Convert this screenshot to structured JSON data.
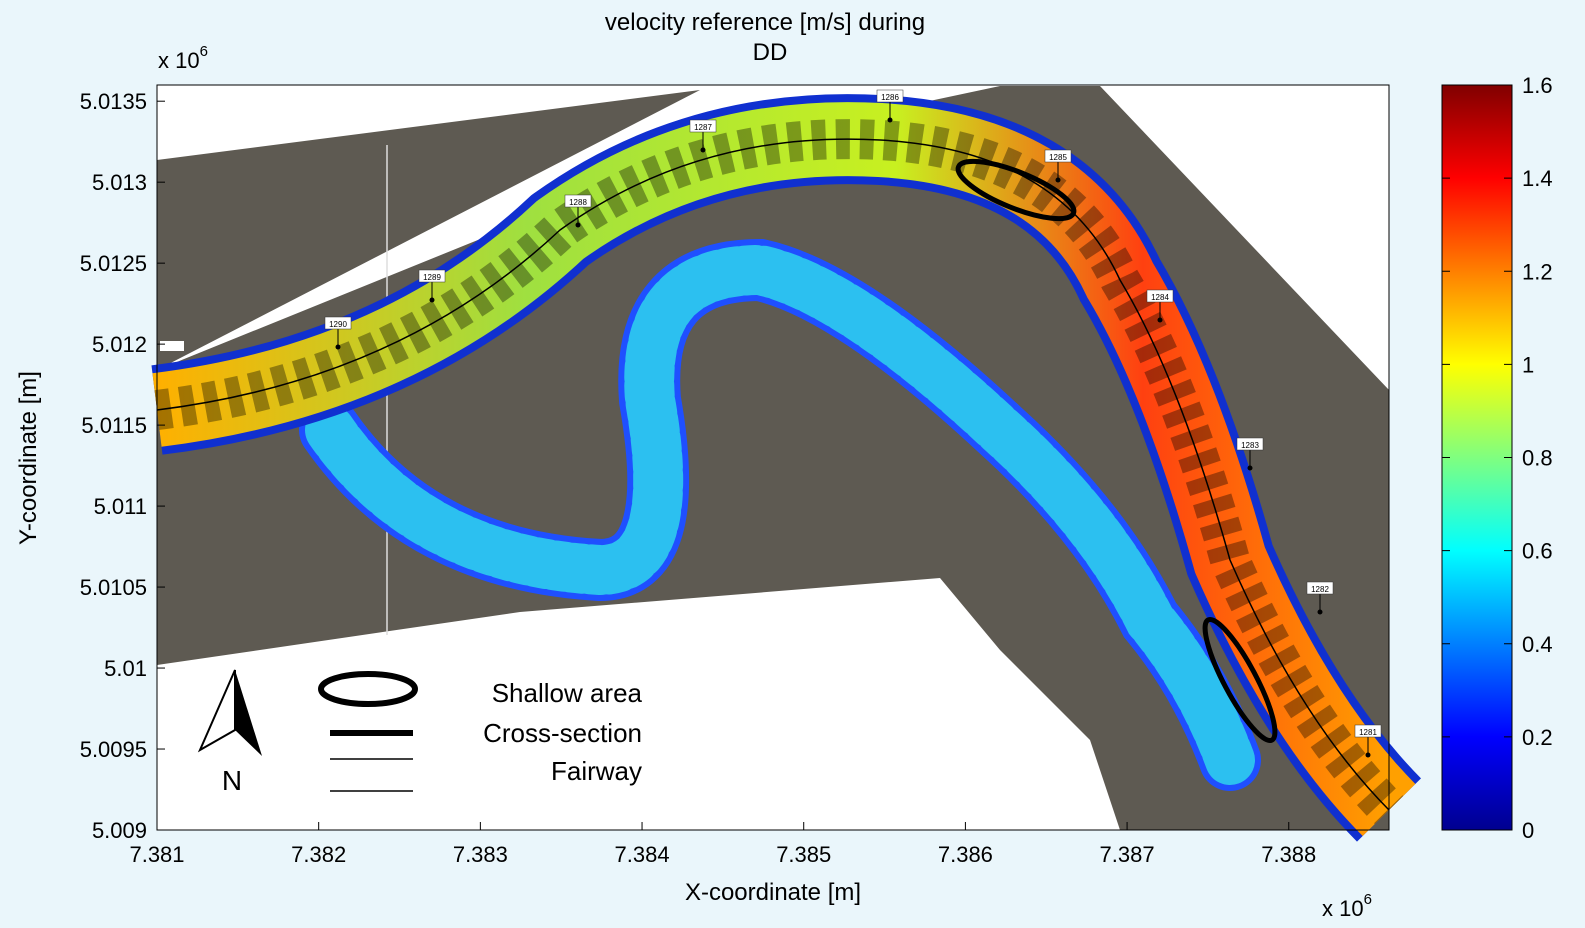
{
  "title": [
    "velocity reference [m/s] during",
    "DD"
  ],
  "x_axis": {
    "label": "X-coordinate [m]",
    "multiplier_base": "x 10",
    "multiplier_exp": "6",
    "lim": [
      7.381,
      7.38862
    ],
    "ticks": [
      7.381,
      7.382,
      7.383,
      7.384,
      7.385,
      7.386,
      7.387,
      7.388
    ]
  },
  "y_axis": {
    "label": "Y-coordinate [m]",
    "multiplier_base": "x 10",
    "multiplier_exp": "6",
    "lim": [
      5.009,
      5.0136
    ],
    "ticks": [
      5.009,
      5.0095,
      5.01,
      5.0105,
      5.011,
      5.0115,
      5.012,
      5.0125,
      5.013,
      5.0135
    ]
  },
  "colorbar": {
    "colormap": "jet",
    "lim": [
      0,
      1.6
    ],
    "ticks": [
      0,
      0.2,
      0.4,
      0.6,
      0.8,
      1,
      1.2,
      1.4,
      1.6
    ]
  },
  "legend": [
    "Shallow area",
    "Cross-section",
    "Fairway"
  ],
  "north": "N",
  "cross_sections": [
    "1281",
    "1282",
    "1283",
    "1284",
    "1285",
    "1286",
    "1287",
    "1288",
    "1289",
    "1290"
  ]
}
